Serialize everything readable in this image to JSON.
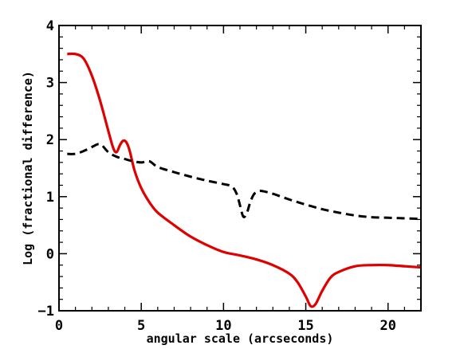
{
  "chart_data": {
    "type": "line",
    "title": "",
    "xlabel": "angular scale (arcseconds)",
    "ylabel": "Log (fractional difference)",
    "xlim": [
      0,
      22
    ],
    "ylim": [
      -1,
      4
    ],
    "grid": false,
    "legend": "none",
    "xticks": [
      0,
      5,
      10,
      15,
      20
    ],
    "yticks": [
      -1,
      0,
      1,
      2,
      3,
      4
    ],
    "xtick_labels": [
      "0",
      "5",
      "10",
      "15",
      "20"
    ],
    "ytick_labels": [
      "−1",
      "0",
      "1",
      "2",
      "3",
      "4"
    ],
    "series": [
      {
        "style": "solid",
        "color": "#e00000",
        "x": [
          0.5,
          1.0,
          1.5,
          2.0,
          2.5,
          3.0,
          3.3,
          3.5,
          3.7,
          3.9,
          4.1,
          4.3,
          4.6,
          5.0,
          5.5,
          6.0,
          7.0,
          8.0,
          9.0,
          10.0,
          11.0,
          12.0,
          13.0,
          14.0,
          14.5,
          15.0,
          15.3,
          15.6,
          16.0,
          16.5,
          17.0,
          18.0,
          19.0,
          20.0,
          21.0,
          22.0
        ],
        "y": [
          3.5,
          3.5,
          3.42,
          3.12,
          2.68,
          2.15,
          1.85,
          1.78,
          1.9,
          1.98,
          1.95,
          1.8,
          1.45,
          1.15,
          0.9,
          0.72,
          0.5,
          0.3,
          0.15,
          0.03,
          -0.03,
          -0.1,
          -0.2,
          -0.35,
          -0.5,
          -0.75,
          -0.92,
          -0.88,
          -0.65,
          -0.42,
          -0.32,
          -0.22,
          -0.2,
          -0.2,
          -0.22,
          -0.24
        ]
      },
      {
        "style": "dashed",
        "color": "#000000",
        "x": [
          0.5,
          1.0,
          1.5,
          2.0,
          2.5,
          3.0,
          3.5,
          4.0,
          4.5,
          5.0,
          5.5,
          6.0,
          7.0,
          8.0,
          9.0,
          10.0,
          10.5,
          10.8,
          11.0,
          11.2,
          11.4,
          11.6,
          11.8,
          12.0,
          12.3,
          13.0,
          14.0,
          15.0,
          16.0,
          17.0,
          18.0,
          19.0,
          20.0,
          21.0,
          22.0
        ],
        "y": [
          1.75,
          1.75,
          1.8,
          1.87,
          1.92,
          1.78,
          1.7,
          1.66,
          1.62,
          1.6,
          1.62,
          1.52,
          1.43,
          1.35,
          1.28,
          1.22,
          1.18,
          1.05,
          0.85,
          0.65,
          0.7,
          0.88,
          1.02,
          1.08,
          1.1,
          1.05,
          0.95,
          0.86,
          0.78,
          0.72,
          0.67,
          0.64,
          0.63,
          0.62,
          0.61
        ]
      }
    ]
  }
}
